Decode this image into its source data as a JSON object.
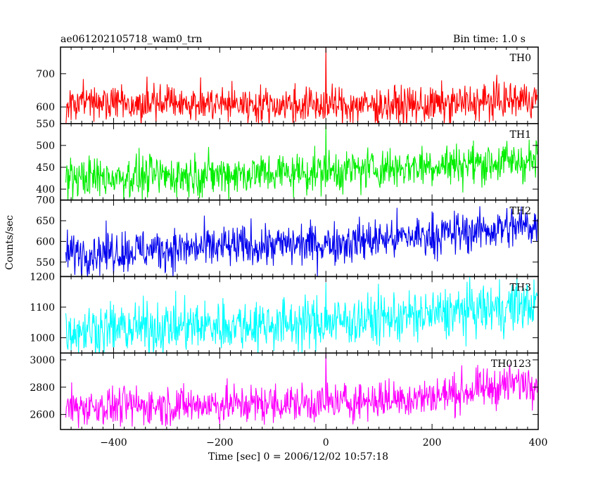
{
  "chart_data": {
    "type": "line",
    "title_left": "ae061202105718_wam0_trn",
    "title_right": "Bin time: 1.0 s",
    "xlabel": "Time [sec] 0 = 2006/12/02 10:57:18",
    "ylabel": "Counts/sec",
    "xlim": [
      -500,
      400
    ],
    "x_ticks": [
      -400,
      -200,
      0,
      200,
      400
    ],
    "x_tick_labels": [
      "−400",
      "−200",
      "0",
      "200",
      "400"
    ],
    "grid": false,
    "x_start": -490,
    "x_end": 398,
    "bin": 1.0,
    "panels": [
      {
        "name": "TH0",
        "color": "#ff0000",
        "ylim": [
          550,
          780
        ],
        "yticks": [
          600,
          700
        ],
        "ytick_labels": [
          "600",
          "700"
        ],
        "trend": [
          [
            -490,
            615
          ],
          [
            0,
            605
          ],
          [
            200,
            605
          ],
          [
            398,
            625
          ]
        ],
        "noise": 28,
        "spike": {
          "x": 0,
          "y": 780
        }
      },
      {
        "name": "TH1",
        "color": "#00ee00",
        "ylim": [
          375,
          550
        ],
        "yticks": [
          400,
          450,
          500,
          550
        ],
        "ytick_labels": [
          "400",
          "450",
          "500",
          "550"
        ],
        "trend": [
          [
            -490,
            425
          ],
          [
            0,
            440
          ],
          [
            200,
            455
          ],
          [
            398,
            465
          ]
        ],
        "noise": 24,
        "spike": {
          "x": 0,
          "y": 550
        }
      },
      {
        "name": "TH2",
        "color": "#0000ee",
        "ylim": [
          515,
          700
        ],
        "yticks": [
          550,
          600,
          650,
          700
        ],
        "ytick_labels": [
          "550",
          "600",
          "650",
          "700"
        ],
        "trend": [
          [
            -490,
            572
          ],
          [
            0,
            595
          ],
          [
            200,
            615
          ],
          [
            398,
            640
          ]
        ],
        "noise": 26,
        "spike": null
      },
      {
        "name": "TH3",
        "color": "#00ffff",
        "ylim": [
          950,
          1200
        ],
        "yticks": [
          1000,
          1100,
          1200
        ],
        "ytick_labels": [
          "1000",
          "1100",
          "1200"
        ],
        "trend": [
          [
            -490,
            1025
          ],
          [
            0,
            1050
          ],
          [
            200,
            1075
          ],
          [
            398,
            1110
          ]
        ],
        "noise": 42,
        "spike": {
          "x": 0,
          "y": 1180
        }
      },
      {
        "name": "TH0123",
        "color": "#ff00ff",
        "ylim": [
          2490,
          3050
        ],
        "yticks": [
          2600,
          2800,
          3000
        ],
        "ytick_labels": [
          "2600",
          "2800",
          "3000"
        ],
        "trend": [
          [
            -490,
            2655
          ],
          [
            0,
            2685
          ],
          [
            200,
            2730
          ],
          [
            398,
            2850
          ]
        ],
        "noise": 72,
        "spike": {
          "x": 0,
          "y": 3050
        }
      }
    ]
  }
}
